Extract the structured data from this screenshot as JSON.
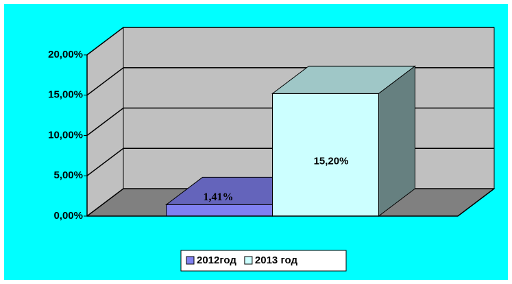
{
  "chart_data": {
    "type": "bar3d",
    "categories": [
      null
    ],
    "series": [
      {
        "name": "2012год",
        "color": "#8080f0",
        "values": [
          1.41
        ],
        "value_labels": [
          "1,41%"
        ]
      },
      {
        "name": "2013 год",
        "color": "#ccffff",
        "values": [
          15.2
        ],
        "value_labels": [
          "15,20%"
        ]
      }
    ],
    "ylim": [
      0,
      20
    ],
    "yticks": [
      {
        "value": 0,
        "label": "0,00%"
      },
      {
        "value": 5,
        "label": "5,00%"
      },
      {
        "value": 10,
        "label": "10,00%"
      },
      {
        "value": 15,
        "label": "15,00%"
      },
      {
        "value": 20,
        "label": "20,00%"
      }
    ],
    "grid": true,
    "legend": "bottom"
  }
}
